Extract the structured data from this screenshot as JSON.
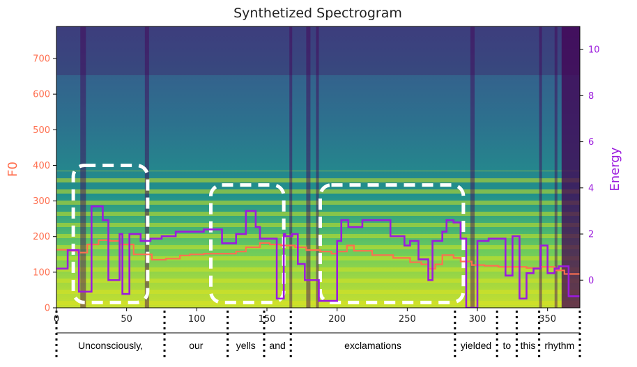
{
  "chart_data": {
    "type": "line",
    "title": "Synthetized Spectrogram",
    "background": "mel spectrogram (viridis colormap)",
    "xlim": [
      0,
      373
    ],
    "xticks": [
      0,
      50,
      100,
      150,
      200,
      250,
      300,
      350
    ],
    "left_axis": {
      "label": "F0",
      "color": "#ff6f4f",
      "ylim": [
        0,
        790
      ],
      "ticks": [
        0,
        100,
        200,
        300,
        400,
        500,
        600,
        700
      ]
    },
    "right_axis": {
      "label": "Energy",
      "color": "#9b1bdd",
      "ylim": [
        -1.2,
        11.0
      ],
      "ticks": [
        0,
        2,
        4,
        6,
        8,
        10
      ]
    },
    "series": [
      {
        "name": "F0",
        "axis": "left",
        "color": "#ff6f4f",
        "x": [
          0,
          8,
          15,
          22,
          30,
          38,
          45,
          55,
          68,
          78,
          88,
          95,
          105,
          112,
          120,
          128,
          135,
          145,
          152,
          160,
          170,
          178,
          188,
          196,
          200,
          207,
          212,
          225,
          240,
          245,
          252,
          260,
          265,
          270,
          275,
          283,
          288,
          296,
          305,
          315,
          325,
          335,
          345,
          355,
          362,
          373
        ],
        "y": [
          163,
          160,
          155,
          178,
          190,
          188,
          178,
          150,
          135,
          138,
          147,
          150,
          152,
          152,
          152,
          158,
          170,
          182,
          178,
          175,
          170,
          162,
          158,
          152,
          158,
          175,
          160,
          148,
          140,
          140,
          128,
          122,
          110,
          122,
          148,
          140,
          130,
          120,
          118,
          115,
          115,
          112,
          115,
          105,
          95,
          95
        ]
      },
      {
        "name": "Energy",
        "axis": "right",
        "color": "#9b1bdd",
        "x": [
          0,
          8,
          12,
          16,
          25,
          33,
          37,
          45,
          47,
          52,
          60,
          67,
          75,
          85,
          105,
          118,
          128,
          135,
          142,
          145,
          157,
          162,
          163,
          168,
          172,
          177,
          187,
          196,
          200,
          203,
          208,
          210,
          218,
          238,
          248,
          252,
          258,
          265,
          268,
          275,
          278,
          283,
          288,
          292,
          300,
          308,
          320,
          325,
          330,
          335,
          340,
          345,
          350,
          355,
          358,
          365,
          373
        ],
        "y": [
          0.5,
          1.3,
          1.3,
          -0.5,
          3.2,
          2.6,
          0.0,
          2.0,
          -0.6,
          2.0,
          1.7,
          1.8,
          1.9,
          2.1,
          2.2,
          1.6,
          2.0,
          3.0,
          2.3,
          1.8,
          -0.8,
          2.0,
          1.9,
          2.0,
          0.7,
          0.0,
          -0.9,
          -0.9,
          1.7,
          2.6,
          2.3,
          2.3,
          2.6,
          1.9,
          1.5,
          1.7,
          0.9,
          0.0,
          1.7,
          2.1,
          2.6,
          2.5,
          1.8,
          -1.2,
          1.7,
          1.8,
          0.2,
          1.9,
          -0.8,
          0.3,
          0.5,
          1.5,
          0.3,
          0.5,
          0.6,
          -0.7,
          -0.7
        ]
      }
    ],
    "highlight_boxes": [
      {
        "x_range": [
          12,
          65
        ],
        "f0_range": [
          15,
          400
        ]
      },
      {
        "x_range": [
          110,
          162
        ],
        "f0_range": [
          15,
          345
        ]
      },
      {
        "x_range": [
          188,
          290
        ],
        "f0_range": [
          15,
          345
        ]
      }
    ],
    "word_alignment": {
      "boundaries": [
        0,
        77,
        122,
        148,
        167,
        284,
        314,
        328,
        344,
        373
      ],
      "words": [
        "Unconsciously,",
        "our",
        "yells",
        "and",
        "exclamations",
        "yielded",
        "to",
        "this",
        "rhythm"
      ]
    }
  }
}
